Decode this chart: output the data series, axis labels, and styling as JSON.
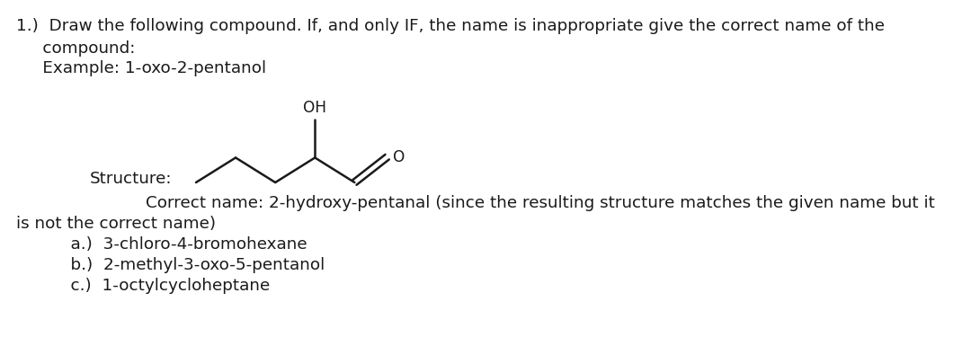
{
  "background_color": "#ffffff",
  "text_color": "#1a1a1a",
  "font_size": 13.2,
  "molecule_color": "#1a1a1a",
  "line1": "1.)  Draw the following compound. If, and only IF, the name is inappropriate give the correct name of the",
  "line2": "     compound:",
  "line3": "     Example: 1-oxo-2-pentanol",
  "struct_label": "Structure:",
  "correct1": "        Correct name: 2-hydroxy-pentanal (since the resulting structure matches the given name but it",
  "correct2": "is not the correct name)",
  "item_a": "    a.)  3-chloro-4-bromohexane",
  "item_b": "    b.)  2-methyl-3-oxo-5-pentanol",
  "item_c": "    c.)  1-octylcycloheptane"
}
